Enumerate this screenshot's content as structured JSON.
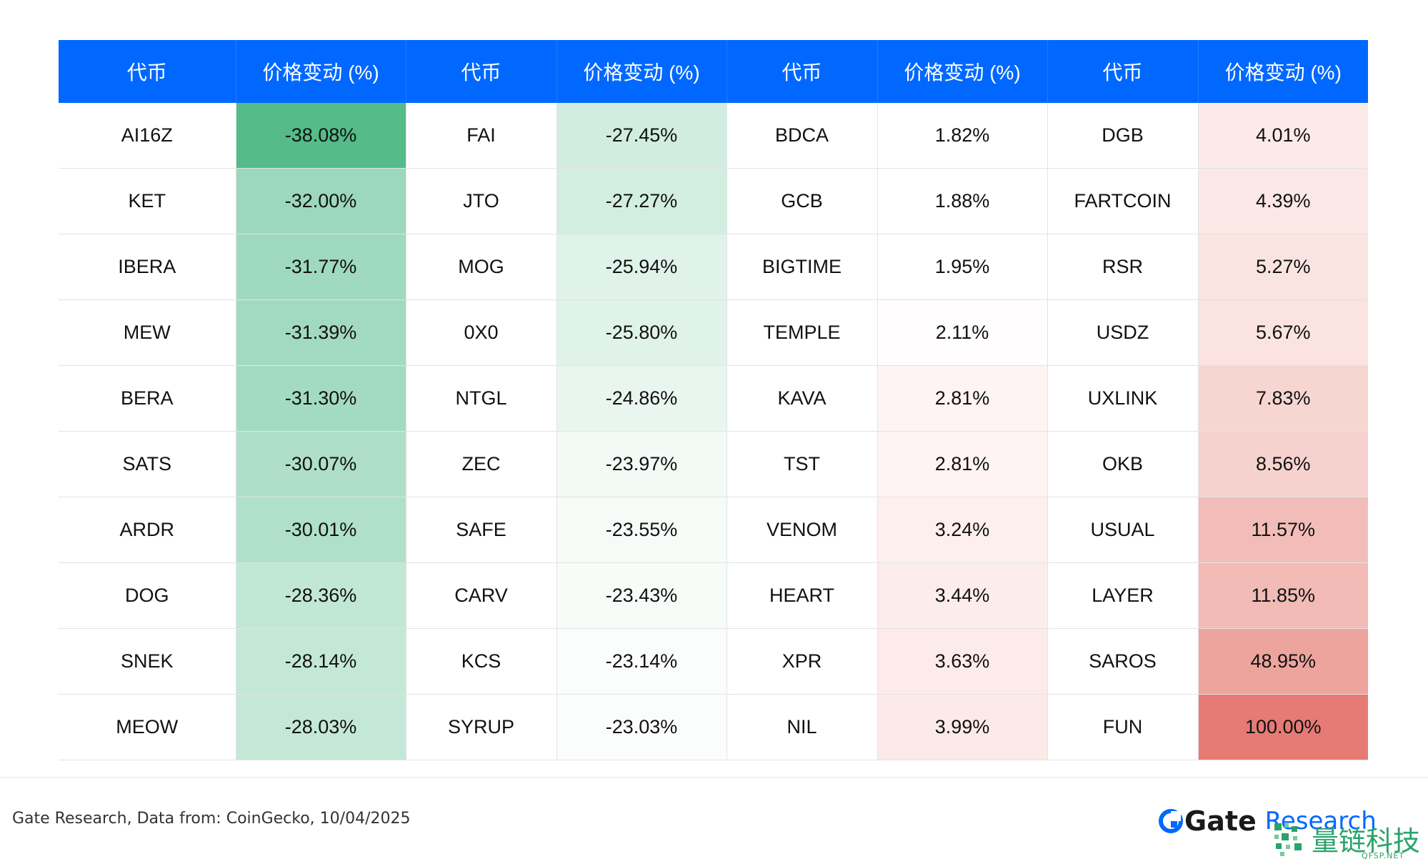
{
  "table": {
    "headers": [
      "代币",
      "价格变动 (%)",
      "代币",
      "价格变动 (%)",
      "代币",
      "价格变动 (%)",
      "代币",
      "价格变动 (%)"
    ],
    "rows": [
      [
        {
          "token": "AI16Z",
          "change": "-38.08%",
          "bg": "#54bb89"
        },
        {
          "token": "FAI",
          "change": "-27.45%",
          "bg": "#d0ede0"
        },
        {
          "token": "BDCA",
          "change": "1.82%",
          "bg": "#ffffff"
        },
        {
          "token": "DGB",
          "change": "4.01%",
          "bg": "#fbeae8"
        }
      ],
      [
        {
          "token": "KET",
          "change": "-32.00%",
          "bg": "#9cd8bc"
        },
        {
          "token": "JTO",
          "change": "-27.27%",
          "bg": "#d2eee1"
        },
        {
          "token": "GCB",
          "change": "1.88%",
          "bg": "#ffffff"
        },
        {
          "token": "FARTCOIN",
          "change": "4.39%",
          "bg": "#fbe8e6"
        }
      ],
      [
        {
          "token": "IBERA",
          "change": "-31.77%",
          "bg": "#9fd9be"
        },
        {
          "token": "MOG",
          "change": "-25.94%",
          "bg": "#dff3ea"
        },
        {
          "token": "BIGTIME",
          "change": "1.95%",
          "bg": "#ffffff"
        },
        {
          "token": "RSR",
          "change": "5.27%",
          "bg": "#fae4e1"
        }
      ],
      [
        {
          "token": "MEW",
          "change": "-31.39%",
          "bg": "#a2dac0"
        },
        {
          "token": "0X0",
          "change": "-25.80%",
          "bg": "#e0f3ea"
        },
        {
          "token": "TEMPLE",
          "change": "2.11%",
          "bg": "#fffdfd"
        },
        {
          "token": "USDZ",
          "change": "5.67%",
          "bg": "#fae3e0"
        }
      ],
      [
        {
          "token": "BERA",
          "change": "-31.30%",
          "bg": "#a3dbc1"
        },
        {
          "token": "NTGL",
          "change": "-24.86%",
          "bg": "#e9f6f0"
        },
        {
          "token": "KAVA",
          "change": "2.81%",
          "bg": "#fdf4f3"
        },
        {
          "token": "UXLINK",
          "change": "7.83%",
          "bg": "#f7d6d2"
        }
      ],
      [
        {
          "token": "SATS",
          "change": "-30.07%",
          "bg": "#afdfc8"
        },
        {
          "token": "ZEC",
          "change": "-23.97%",
          "bg": "#f2faf6"
        },
        {
          "token": "TST",
          "change": "2.81%",
          "bg": "#fdf4f3"
        },
        {
          "token": "OKB",
          "change": "8.56%",
          "bg": "#f6d2ce"
        }
      ],
      [
        {
          "token": "ARDR",
          "change": "-30.01%",
          "bg": "#b0e0c9"
        },
        {
          "token": "SAFE",
          "change": "-23.55%",
          "bg": "#f6fbf8"
        },
        {
          "token": "VENOM",
          "change": "3.24%",
          "bg": "#fcefed"
        },
        {
          "token": "USUAL",
          "change": "11.57%",
          "bg": "#f2bdb8"
        }
      ],
      [
        {
          "token": "DOG",
          "change": "-28.36%",
          "bg": "#c1e7d5"
        },
        {
          "token": "CARV",
          "change": "-23.43%",
          "bg": "#f7fcf9"
        },
        {
          "token": "HEART",
          "change": "3.44%",
          "bg": "#fcedeb"
        },
        {
          "token": "LAYER",
          "change": "11.85%",
          "bg": "#f2bbb6"
        }
      ],
      [
        {
          "token": "SNEK",
          "change": "-28.14%",
          "bg": "#c3e8d6"
        },
        {
          "token": "KCS",
          "change": "-23.14%",
          "bg": "#fafdfb"
        },
        {
          "token": "XPR",
          "change": "3.63%",
          "bg": "#fcebe9"
        },
        {
          "token": "SAROS",
          "change": "48.95%",
          "bg": "#eda49d"
        }
      ],
      [
        {
          "token": "MEOW",
          "change": "-28.03%",
          "bg": "#c4e8d7"
        },
        {
          "token": "SYRUP",
          "change": "-23.03%",
          "bg": "#fbfdfc"
        },
        {
          "token": "NIL",
          "change": "3.99%",
          "bg": "#fbeae8"
        },
        {
          "token": "FUN",
          "change": "100.00%",
          "bg": "#e57b74"
        }
      ]
    ]
  },
  "footer": {
    "source": "Gate Research, Data from: CoinGecko, 10/04/2025",
    "brand_name": "Gate",
    "brand_sub": "Research",
    "brand_color": "#0068ff",
    "watermark_text": "量链科技",
    "watermark_url": "QFSP.NET",
    "watermark_color": "#2aa36b"
  },
  "colors": {
    "header_bg": "#0068ff",
    "header_text": "#ffffff"
  }
}
